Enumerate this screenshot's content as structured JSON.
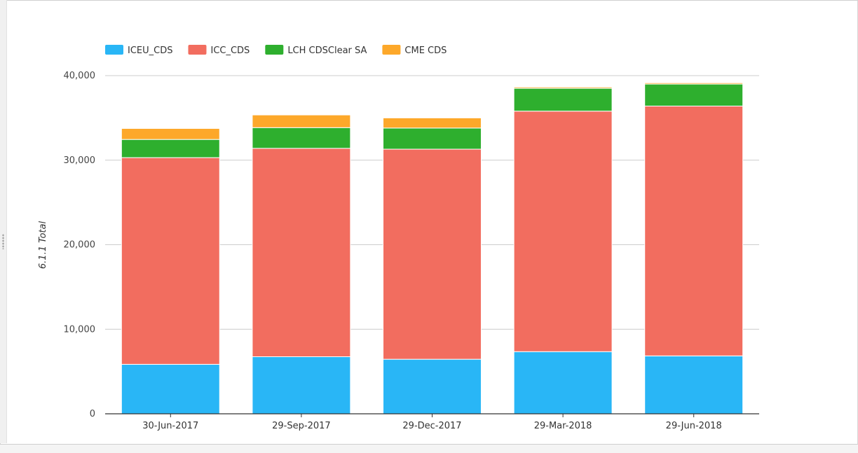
{
  "chart_data": {
    "type": "bar",
    "stacked": true,
    "title": "",
    "xlabel": "",
    "ylabel": "6.1.1 Total",
    "ylim": [
      0,
      40000
    ],
    "yticks": [
      0,
      10000,
      20000,
      30000,
      40000
    ],
    "ytick_labels": [
      "0",
      "10,000",
      "20,000",
      "30,000",
      "40,000"
    ],
    "grid": true,
    "legend_position": "top-left",
    "categories": [
      "30-Jun-2017",
      "29-Sep-2017",
      "29-Dec-2017",
      "29-Mar-2018",
      "29-Jun-2018"
    ],
    "series": [
      {
        "name": "ICEU_CDS",
        "color": "#29b6f6",
        "values": [
          5850,
          6750,
          6450,
          7350,
          6850
        ]
      },
      {
        "name": "ICC_CDS",
        "color": "#f26d5f",
        "values": [
          24450,
          24650,
          24850,
          28450,
          29550
        ]
      },
      {
        "name": "LCH CDSClear SA",
        "color": "#2eaf2e",
        "values": [
          2150,
          2450,
          2500,
          2700,
          2600
        ]
      },
      {
        "name": "CME CDS",
        "color": "#fda82a",
        "values": [
          1300,
          1500,
          1200,
          150,
          150
        ]
      }
    ]
  }
}
